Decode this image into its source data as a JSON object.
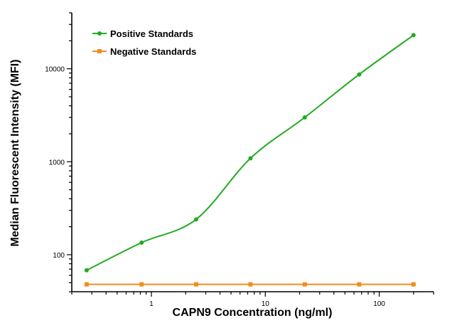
{
  "chart_data": {
    "type": "scatter",
    "xlabel": "CAPN9 Concentration (ng/ml)",
    "ylabel": "Median Fluorescent Intensity (MFI)",
    "x_scale": "log",
    "y_scale": "log",
    "xlim": [
      0.2,
      300
    ],
    "ylim": [
      40,
      40000
    ],
    "x_ticks": [
      {
        "value": 1,
        "label": "1"
      },
      {
        "value": 10,
        "label": "10"
      },
      {
        "value": 100,
        "label": "100"
      }
    ],
    "y_ticks": [
      {
        "value": 100,
        "label": "100"
      },
      {
        "value": 1000,
        "label": "1000"
      },
      {
        "value": 10000,
        "label": "10000"
      }
    ],
    "grid": false,
    "legend_position": "top-left",
    "series": [
      {
        "name": "Positive Standards",
        "color": "#22aa22",
        "marker": "circle",
        "fit_curve": true,
        "x": [
          0.27,
          0.82,
          2.47,
          7.41,
          22.2,
          66.7,
          200
        ],
        "y": [
          68,
          135,
          240,
          1090,
          3000,
          8700,
          23000
        ]
      },
      {
        "name": "Negative Standards",
        "color": "#f28c1e",
        "marker": "square",
        "fit_curve": false,
        "x": [
          0.27,
          0.82,
          2.47,
          7.41,
          22.2,
          66.7,
          200
        ],
        "y": [
          48,
          48,
          48,
          48,
          48,
          48,
          48
        ]
      }
    ]
  }
}
